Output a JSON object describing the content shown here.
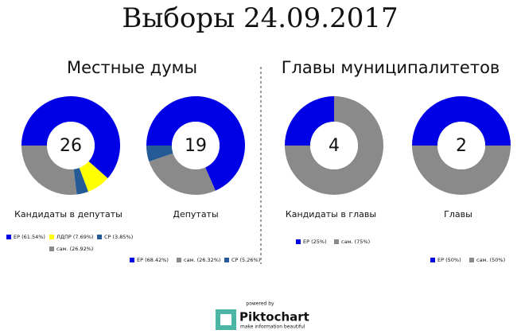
{
  "title": "Выборы 24.09.2017",
  "sections": [
    "Местные думы",
    "Главы муниципалитетов"
  ],
  "chart_data": [
    {
      "type": "donut",
      "center_label": "26",
      "caption": "Кандидаты в депутаты",
      "categories": [
        "ЕР (61.54%)",
        "ЛДПР (7.69%)",
        "СР (3.85%)",
        "сам. (26.92%)"
      ],
      "values": [
        61.54,
        7.69,
        3.85,
        26.92
      ],
      "colors": [
        "#0000e6",
        "#ffff00",
        "#255a96",
        "#8a8a8a"
      ]
    },
    {
      "type": "donut",
      "center_label": "19",
      "caption": "Депутаты",
      "categories": [
        "ЕР (68.42%)",
        "сам. (26.32%)",
        "СР (5.26%)"
      ],
      "values": [
        68.42,
        26.32,
        5.26
      ],
      "colors": [
        "#0000e6",
        "#8a8a8a",
        "#255a96"
      ]
    },
    {
      "type": "donut",
      "center_label": "4",
      "caption": "Кандидаты в главы",
      "categories": [
        "ЕР (25%)",
        "сам. (75%)"
      ],
      "values": [
        25,
        75
      ],
      "colors": [
        "#0000e6",
        "#8a8a8a"
      ]
    },
    {
      "type": "donut",
      "center_label": "2",
      "caption": "Главы",
      "categories": [
        "ЕР (50%)",
        "сам. (50%)"
      ],
      "values": [
        50,
        50
      ],
      "colors": [
        "#0000e6",
        "#8a8a8a"
      ]
    }
  ],
  "footer": {
    "powered": "powered by",
    "brand": "Piktochart",
    "tagline": "make information beautiful"
  }
}
